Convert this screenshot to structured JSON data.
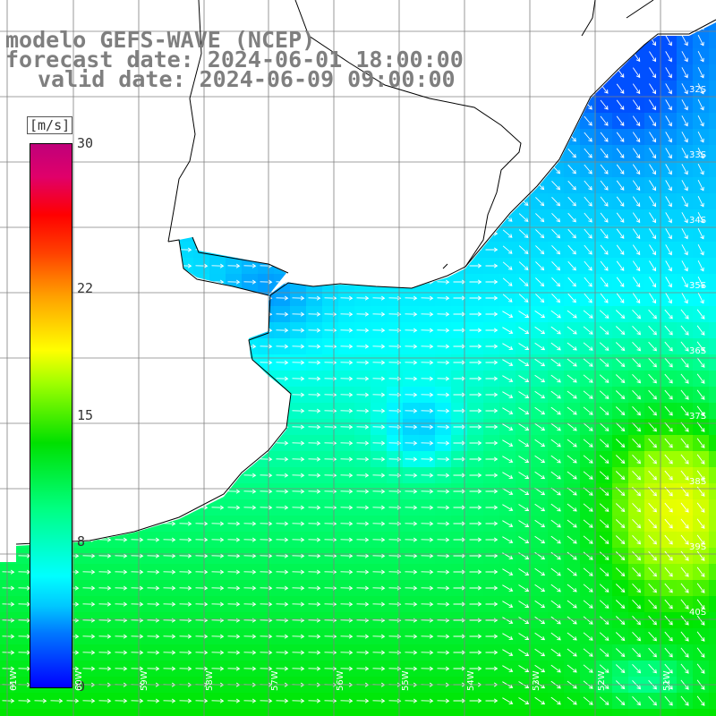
{
  "title": {
    "line1": "modelo GEFS-WAVE (NCEP)",
    "line2": "forecast date: 2024-06-01 18:00:00",
    "line3": "valid date: 2024-06-09 09:00:00"
  },
  "colorbar": {
    "units": "[m/s]",
    "ticks": [
      "30",
      "22",
      "15",
      "8",
      "0"
    ],
    "tick_values": [
      30,
      22,
      15,
      8,
      0
    ],
    "min": 0,
    "max": 30,
    "colors": [
      "#0000ff",
      "#00c8ff",
      "#00ffff",
      "#00e000",
      "#ffff00",
      "#ff0000",
      "#c0007a"
    ]
  },
  "grid": {
    "lat_labels": [
      "32S",
      "33S",
      "34S",
      "35S",
      "36S",
      "37S",
      "38S",
      "39S",
      "40S"
    ],
    "lon_labels": [
      "61W",
      "60W",
      "59W",
      "58W",
      "57W",
      "56W",
      "55W",
      "54W",
      "53W",
      "52W",
      "51W"
    ]
  },
  "colors": {
    "land": "#ffffff",
    "coast": "#000000",
    "grid_lines": "#808080",
    "arrows": "#ffffff",
    "title_text": "#7f7f7f"
  }
}
